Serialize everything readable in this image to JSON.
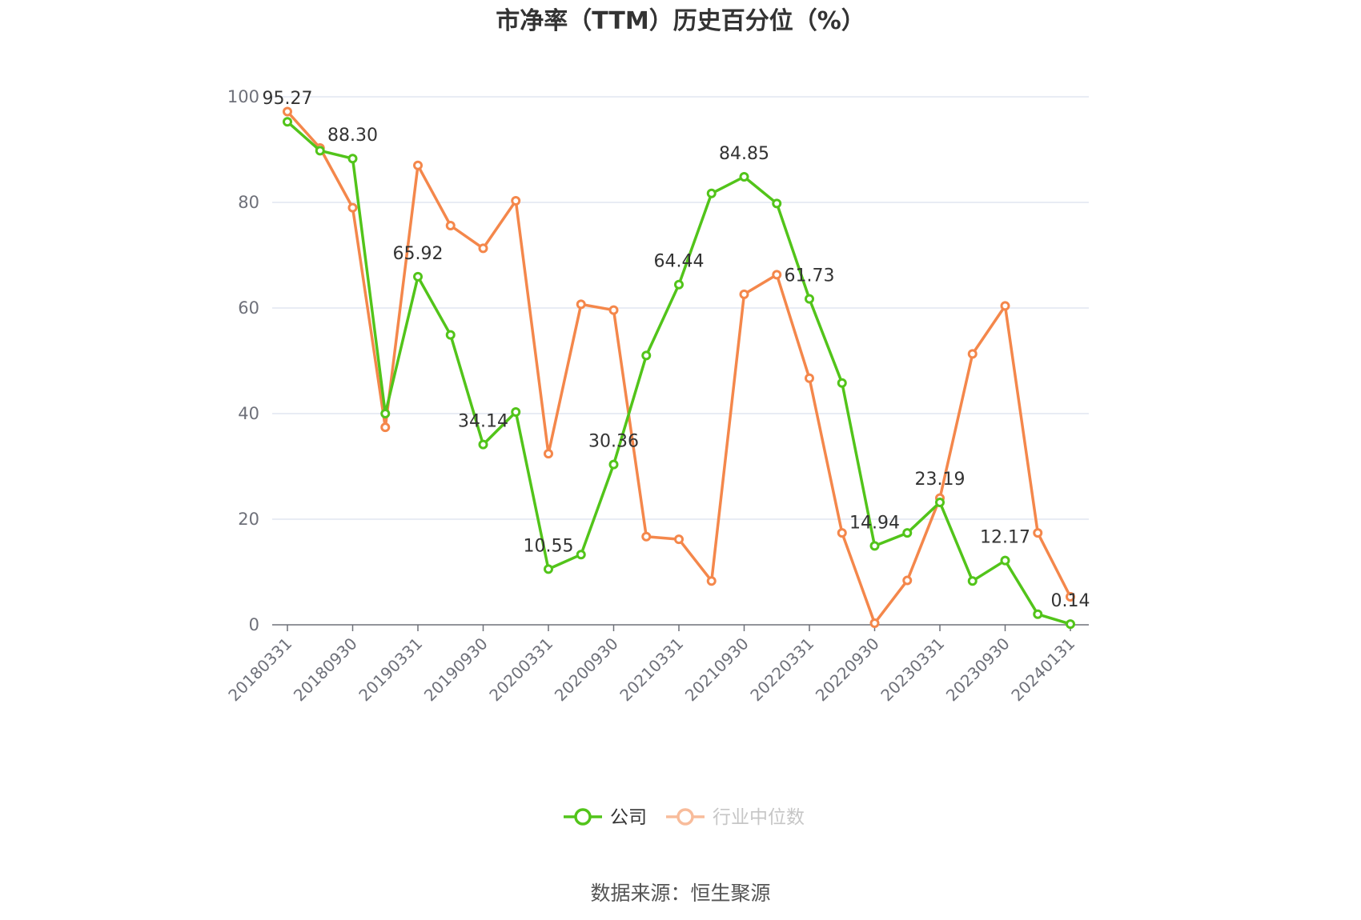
{
  "chart_data": {
    "type": "line",
    "title": "市净率（TTM）历史百分位（%）",
    "source": "数据来源：恒生聚源",
    "ylim": [
      0,
      100
    ],
    "yticks": [
      0,
      20,
      40,
      60,
      80,
      100
    ],
    "grid": true,
    "legend_position": "bottom-center",
    "x": [
      "20180331",
      "20180630",
      "20180930",
      "20181231",
      "20190331",
      "20190630",
      "20190930",
      "20191231",
      "20200331",
      "20200630",
      "20200930",
      "20201231",
      "20210331",
      "20210630",
      "20210930",
      "20211231",
      "20220331",
      "20220630",
      "20220930",
      "20221231",
      "20230331",
      "20230630",
      "20230930",
      "20231231",
      "20240131"
    ],
    "xtick_labels": [
      "20180331",
      "20180930",
      "20190331",
      "20190930",
      "20200331",
      "20200930",
      "20210331",
      "20210930",
      "20220331",
      "20220930",
      "20230331",
      "20230930",
      "20240131"
    ],
    "series": [
      {
        "name": "公司",
        "color": "#52c41a",
        "values": [
          95.27,
          89.8,
          88.3,
          40.0,
          65.92,
          54.9,
          34.14,
          40.3,
          10.55,
          13.3,
          30.36,
          51.0,
          64.44,
          81.7,
          84.85,
          79.8,
          61.73,
          45.8,
          14.94,
          17.4,
          23.19,
          8.3,
          12.17,
          2.0,
          0.14
        ],
        "labels": [
          "95.27",
          null,
          "88.30",
          null,
          "65.92",
          null,
          "34.14",
          null,
          "10.55",
          null,
          "30.36",
          null,
          "64.44",
          null,
          "84.85",
          null,
          "61.73",
          null,
          "14.94",
          null,
          "23.19",
          null,
          "12.17",
          null,
          "0.14"
        ]
      },
      {
        "name": "行业中位数",
        "color": "#f4874b",
        "values": [
          97.2,
          90.3,
          79.0,
          37.4,
          87.0,
          75.6,
          71.3,
          80.3,
          32.4,
          60.7,
          59.6,
          16.7,
          16.2,
          8.3,
          62.6,
          66.3,
          46.7,
          17.4,
          0.3,
          8.4,
          24.0,
          51.3,
          60.4,
          17.4,
          5.3
        ]
      }
    ]
  }
}
